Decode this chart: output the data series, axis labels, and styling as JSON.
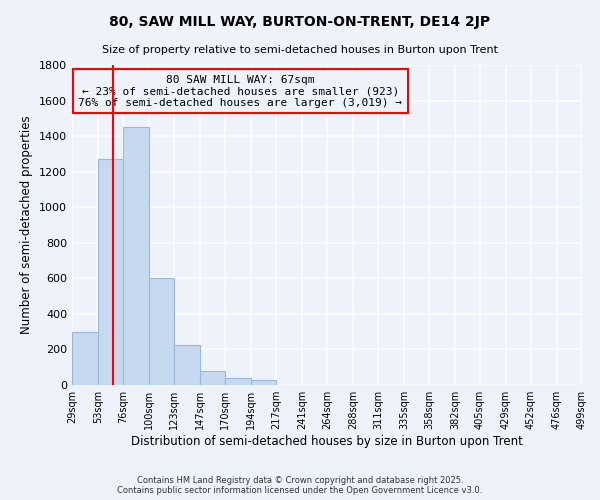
{
  "title": "80, SAW MILL WAY, BURTON-ON-TRENT, DE14 2JP",
  "subtitle": "Size of property relative to semi-detached houses in Burton upon Trent",
  "xlabel": "Distribution of semi-detached houses by size in Burton upon Trent",
  "ylabel": "Number of semi-detached properties",
  "bar_color": "#c6d9f0",
  "bar_edgecolor": "#9ab8d8",
  "property_line_x": 67,
  "property_line_color": "red",
  "annotation_title": "80 SAW MILL WAY: 67sqm",
  "annotation_line1": "← 23% of semi-detached houses are smaller (923)",
  "annotation_line2": "76% of semi-detached houses are larger (3,019) →",
  "bin_edges": [
    29,
    53,
    76,
    100,
    123,
    147,
    170,
    194,
    217,
    241,
    264,
    288,
    311,
    335,
    358,
    382,
    405,
    429,
    452,
    476,
    499
  ],
  "bin_labels": [
    "29sqm",
    "53sqm",
    "76sqm",
    "100sqm",
    "123sqm",
    "147sqm",
    "170sqm",
    "194sqm",
    "217sqm",
    "241sqm",
    "264sqm",
    "288sqm",
    "311sqm",
    "335sqm",
    "358sqm",
    "382sqm",
    "405sqm",
    "429sqm",
    "452sqm",
    "476sqm",
    "499sqm"
  ],
  "counts": [
    300,
    1270,
    1450,
    600,
    225,
    80,
    40,
    28,
    0,
    0,
    0,
    0,
    0,
    0,
    0,
    0,
    0,
    0,
    0,
    0
  ],
  "ylim": [
    0,
    1800
  ],
  "yticks": [
    0,
    200,
    400,
    600,
    800,
    1000,
    1200,
    1400,
    1600,
    1800
  ],
  "background_color": "#eef2fb",
  "grid_color": "#ffffff",
  "footer_line1": "Contains HM Land Registry data © Crown copyright and database right 2025.",
  "footer_line2": "Contains public sector information licensed under the Open Government Licence v3.0."
}
